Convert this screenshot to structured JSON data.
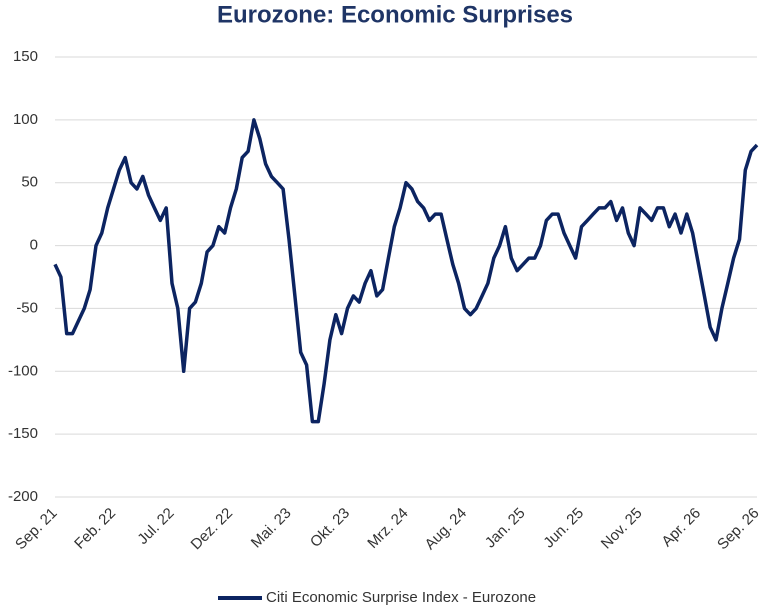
{
  "chart_data": {
    "type": "line",
    "title": "Eurozone: Economic Surprises",
    "categories": [
      "Sep. 21",
      null,
      null,
      null,
      null,
      null,
      null,
      null,
      null,
      null,
      "Feb. 22",
      null,
      null,
      null,
      null,
      null,
      null,
      null,
      null,
      null,
      "Jul. 22",
      null,
      null,
      null,
      null,
      null,
      null,
      null,
      null,
      null,
      "Dez. 22",
      null,
      null,
      null,
      null,
      null,
      null,
      null,
      null,
      null,
      "Mai. 23",
      null,
      null,
      null,
      null,
      null,
      null,
      null,
      null,
      null,
      "Okt. 23",
      null,
      null,
      null,
      null,
      null,
      null,
      null,
      null,
      null,
      "Mrz. 24",
      null,
      null,
      null,
      null,
      null,
      null,
      null,
      null,
      null,
      "Aug. 24",
      null,
      null,
      null,
      null,
      null,
      null,
      null,
      null,
      null,
      "Jan. 25",
      null,
      null,
      null,
      null,
      null,
      null,
      null,
      null,
      null,
      "Jun. 25",
      null,
      null,
      null,
      null,
      null,
      null,
      null,
      null,
      null,
      "Nov. 25",
      null,
      null,
      null,
      null,
      null,
      null,
      null,
      null,
      null,
      "Apr. 26",
      null,
      null,
      null,
      null,
      null,
      null,
      null,
      null,
      null,
      "Sep. 26"
    ],
    "series": [
      {
        "name": "Citi Economic Surprise Index - Eurozone",
        "color": "#0c2461",
        "values": [
          -15,
          -25,
          -70,
          -70,
          -60,
          -50,
          -35,
          0,
          10,
          30,
          45,
          60,
          70,
          50,
          45,
          55,
          40,
          30,
          20,
          30,
          -30,
          -50,
          -100,
          -50,
          -45,
          -30,
          -5,
          0,
          15,
          10,
          30,
          45,
          70,
          75,
          100,
          85,
          65,
          55,
          50,
          45,
          5,
          -40,
          -85,
          -95,
          -140,
          -140,
          -110,
          -75,
          -55,
          -70,
          -50,
          -40,
          -45,
          -30,
          -20,
          -40,
          -35,
          -10,
          15,
          30,
          50,
          45,
          35,
          30,
          20,
          25,
          25,
          5,
          -15,
          -30,
          -50,
          -55,
          -50,
          -40,
          -30,
          -10,
          0,
          15,
          -10,
          -20,
          -15,
          -10,
          -10,
          0,
          20,
          25,
          25,
          10,
          0,
          -10,
          15,
          20,
          25,
          30,
          30,
          35,
          20,
          30,
          10,
          0,
          30,
          25,
          20,
          30,
          30,
          15,
          25,
          10,
          25,
          10,
          -15,
          -40,
          -65,
          -75,
          -50,
          -30,
          -10,
          5,
          60,
          75,
          80
        ]
      }
    ],
    "ylim": [
      -200,
      150
    ],
    "yticks": [
      -200,
      -150,
      -100,
      -50,
      0,
      50,
      100,
      150
    ],
    "grid": true,
    "legend": "bottom"
  }
}
